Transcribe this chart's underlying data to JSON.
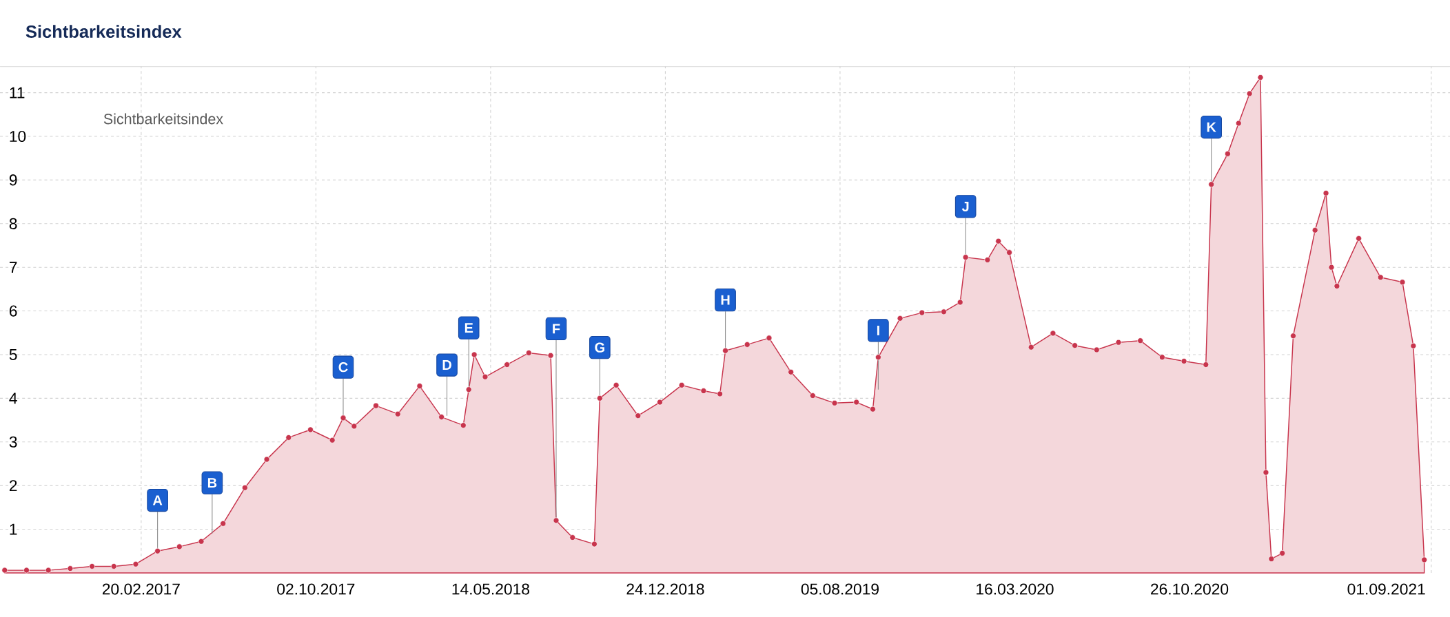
{
  "chart_data": {
    "type": "area",
    "title": "Sichtbarkeitsindex",
    "legend_title": "Sichtbarkeitsindex",
    "x": [
      "2016-08-29",
      "2016-09-26",
      "2016-10-24",
      "2016-11-21",
      "2016-12-19",
      "2017-01-16",
      "2017-02-13",
      "2017-03-13",
      "2017-04-10",
      "2017-05-08",
      "2017-06-05",
      "2017-07-03",
      "2017-07-31",
      "2017-08-28",
      "2017-09-25",
      "2017-10-23",
      "2017-11-06",
      "2017-11-20",
      "2017-12-18",
      "2018-01-15",
      "2018-02-12",
      "2018-03-12",
      "2018-04-09",
      "2018-04-16",
      "2018-04-23",
      "2018-05-07",
      "2018-06-04",
      "2018-07-02",
      "2018-07-30",
      "2018-08-06",
      "2018-08-27",
      "2018-09-24",
      "2018-10-01",
      "2018-10-22",
      "2018-11-19",
      "2018-12-17",
      "2019-01-14",
      "2019-02-11",
      "2019-03-04",
      "2019-03-11",
      "2019-04-08",
      "2019-05-06",
      "2019-06-03",
      "2019-07-01",
      "2019-07-29",
      "2019-08-26",
      "2019-09-16",
      "2019-09-23",
      "2019-10-21",
      "2019-11-18",
      "2019-12-16",
      "2020-01-06",
      "2020-01-13",
      "2020-02-10",
      "2020-02-24",
      "2020-03-09",
      "2020-04-06",
      "2020-05-04",
      "2020-06-01",
      "2020-06-29",
      "2020-07-27",
      "2020-08-24",
      "2020-09-21",
      "2020-10-19",
      "2020-11-16",
      "2020-11-23",
      "2020-12-14",
      "2020-12-28",
      "2021-01-11",
      "2021-01-25",
      "2021-02-01",
      "2021-02-08",
      "2021-02-22",
      "2021-03-08",
      "2021-04-05",
      "2021-04-19",
      "2021-04-26",
      "2021-05-03",
      "2021-05-31",
      "2021-06-28",
      "2021-07-26",
      "2021-08-09",
      "2021-08-23"
    ],
    "series": [
      {
        "color": "#c8354d",
        "values": [
          0.06,
          0.06,
          0.06,
          0.1,
          0.15,
          0.15,
          0.2,
          0.5,
          0.6,
          0.72,
          1.13,
          1.95,
          2.6,
          3.1,
          3.28,
          3.04,
          3.55,
          3.36,
          3.83,
          3.64,
          4.28,
          3.57,
          3.38,
          4.2,
          5.0,
          4.49,
          4.77,
          5.04,
          4.98,
          1.2,
          0.81,
          0.66,
          4.0,
          4.3,
          3.6,
          3.91,
          4.3,
          4.17,
          4.1,
          5.09,
          5.23,
          5.38,
          4.6,
          4.06,
          3.89,
          3.91,
          3.75,
          4.94,
          5.83,
          5.96,
          5.98,
          6.2,
          7.23,
          7.17,
          7.6,
          7.34,
          5.17,
          5.49,
          5.21,
          5.11,
          5.28,
          5.32,
          4.94,
          4.85,
          4.77,
          8.9,
          9.6,
          10.3,
          10.98,
          11.35,
          2.3,
          0.32,
          0.45,
          5.43,
          7.85,
          8.7,
          7.0,
          6.57,
          7.66,
          6.77,
          6.66,
          5.2,
          0.3
        ]
      }
    ],
    "xlim": [
      "2016-08-23",
      "2021-09-25"
    ],
    "ylim": [
      0,
      11.6
    ],
    "xticks": [
      {
        "value": "2017-02-20",
        "label": "20.02.2017"
      },
      {
        "value": "2017-10-02",
        "label": "02.10.2017"
      },
      {
        "value": "2018-05-14",
        "label": "14.05.2018"
      },
      {
        "value": "2018-12-24",
        "label": "24.12.2018"
      },
      {
        "value": "2019-08-05",
        "label": "05.08.2019"
      },
      {
        "value": "2020-03-16",
        "label": "16.03.2020"
      },
      {
        "value": "2020-10-26",
        "label": "26.10.2020"
      },
      {
        "value": "2021-09-01",
        "label": "01.09.2021"
      }
    ],
    "yticks": [
      1,
      2,
      3,
      4,
      5,
      6,
      7,
      8,
      9,
      10,
      11
    ],
    "grid": true,
    "marker": "circle",
    "annotations": [
      {
        "text": "A",
        "x": "2017-03-13",
        "y": 0.5
      },
      {
        "text": "B",
        "x": "2017-05-22",
        "y": 0.9
      },
      {
        "text": "C",
        "x": "2017-11-06",
        "y": 3.55
      },
      {
        "text": "D",
        "x": "2018-03-19",
        "y": 3.6
      },
      {
        "text": "E",
        "x": "2018-04-16",
        "y": 4.2
      },
      {
        "text": "F",
        "x": "2018-08-06",
        "y": 1.2
      },
      {
        "text": "G",
        "x": "2018-10-01",
        "y": 4.0
      },
      {
        "text": "H",
        "x": "2019-03-11",
        "y": 5.09
      },
      {
        "text": "I",
        "x": "2019-09-23",
        "y": 4.2
      },
      {
        "text": "J",
        "x": "2020-01-13",
        "y": 7.23
      },
      {
        "text": "K",
        "x": "2020-11-23",
        "y": 8.9
      }
    ]
  }
}
